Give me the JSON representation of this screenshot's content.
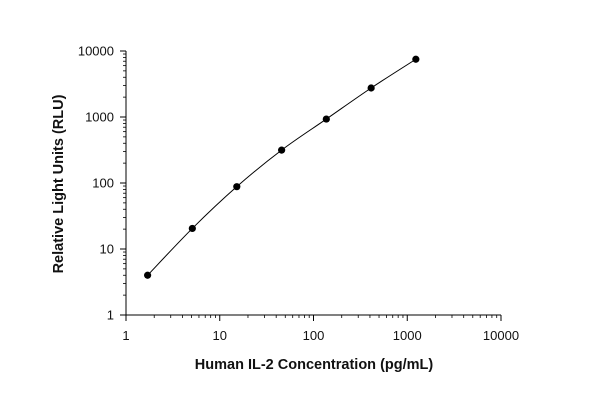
{
  "chart_data": {
    "type": "scatter",
    "title": "",
    "xlabel": "Human IL-2 Concentration (pg/mL)",
    "ylabel": "Relative Light Units (RLU)",
    "xscale": "log",
    "yscale": "log",
    "xlim": [
      1,
      10000
    ],
    "ylim": [
      1,
      10000
    ],
    "x_ticks": [
      "1",
      "10",
      "100",
      "1000",
      "10000"
    ],
    "y_ticks": [
      "1",
      "10",
      "100",
      "1000",
      "10000"
    ],
    "grid": false,
    "legend": "none",
    "colors": {
      "axis": "#000000",
      "point": "#000000",
      "curve": "#000000"
    },
    "series": [
      {
        "x": [
          1.7,
          5.1,
          15.2,
          45.7,
          137,
          412,
          1235
        ],
        "y": [
          4,
          20.5,
          88,
          315,
          930,
          2750,
          7500
        ]
      }
    ],
    "fit_curve": true
  }
}
